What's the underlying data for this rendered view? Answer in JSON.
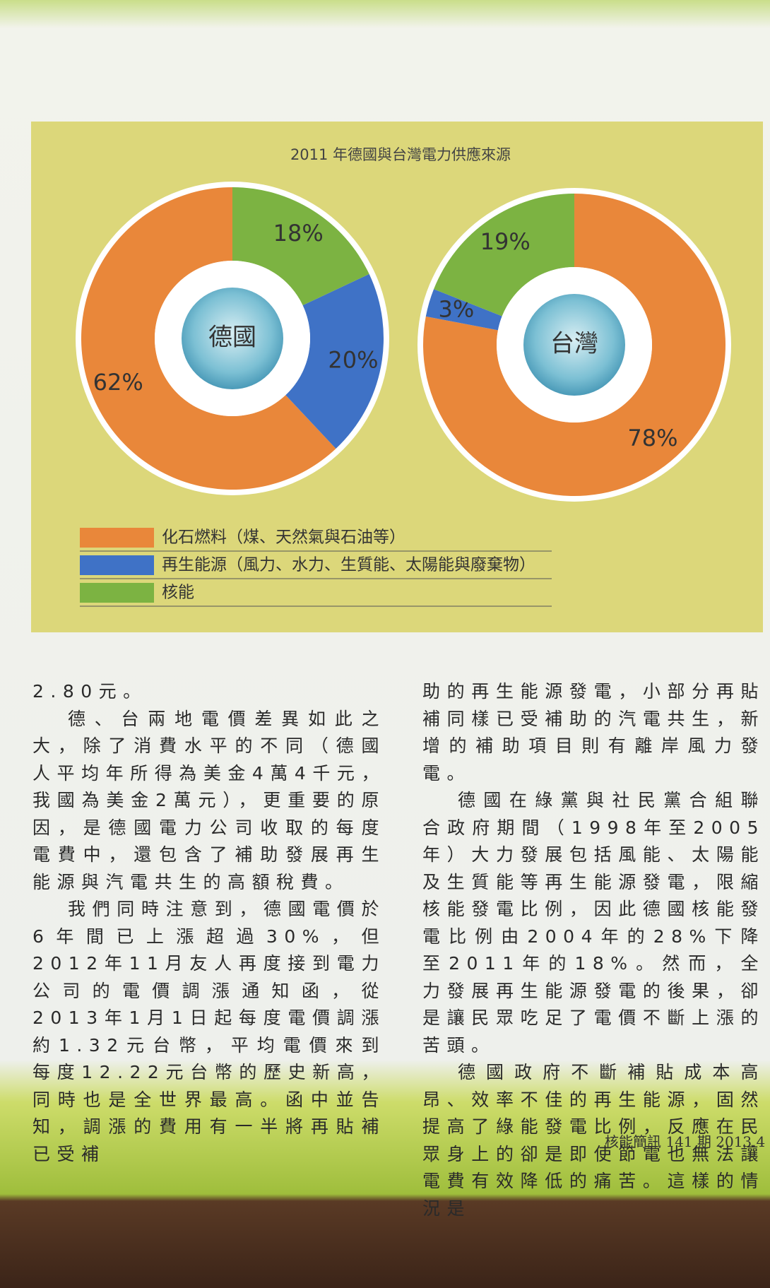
{
  "chart_data": [
    {
      "type": "pie",
      "title": "2011 年德國與台灣電力供應來源",
      "categories": [
        "化石燃料（煤、天然氣與石油等）",
        "再生能源（風力、水力、生質能、太陽能與廢棄物）",
        "核能"
      ],
      "colors": [
        "#e9873a",
        "#3f72c6",
        "#7cb342"
      ],
      "center_label": "德國",
      "values": [
        62,
        20,
        18
      ],
      "value_labels": [
        "62%",
        "20%",
        "18%"
      ]
    },
    {
      "type": "pie",
      "center_label": "台灣",
      "values": [
        78,
        3,
        19
      ],
      "value_labels": [
        "78%",
        "3%",
        "19%"
      ]
    }
  ],
  "article": {
    "left": [
      "2.80元。",
      "德、台兩地電價差異如此之大，除了消費水平的不同（德國人平均年所得為美金4萬4千元，我國為美金2萬元），更重要的原因，是德國電力公司收取的每度電費中，還包含了補助發展再生能源與汽電共生的高額稅費。",
      "我們同時注意到，德國電價於6年間已上漲超過30%，但2012年11月友人再度接到電力公司的電價調漲通知函，從2013年1月1日起每度電價調漲約1.32元台幣，平均電價來到每度12.22元台幣的歷史新高，同時也是全世界最高。函中並告知，調漲的費用有一半將再貼補已受補"
    ],
    "right": [
      "助的再生能源發電，小部分再貼補同樣已受補助的汽電共生，新增的補助項目則有離岸風力發電。",
      "德國在綠黨與社民黨合組聯合政府期間（1998年至2005年）大力發展包括風能、太陽能及生質能等再生能源發電，限縮核能發電比例，因此德國核能發電比例由2004年的28%下降至2011年的18%。然而，全力發展再生能源發電的後果，卻是讓民眾吃足了電價不斷上漲的苦頭。",
      "德國政府不斷補貼成本高昂、效率不佳的再生能源，固然提高了綠能發電比例，反應在民眾身上的卻是即使節電也無法讓電費有效降低的痛苦。這樣的情況是"
    ]
  },
  "footer": "核能簡訊 141 期 2013.4"
}
